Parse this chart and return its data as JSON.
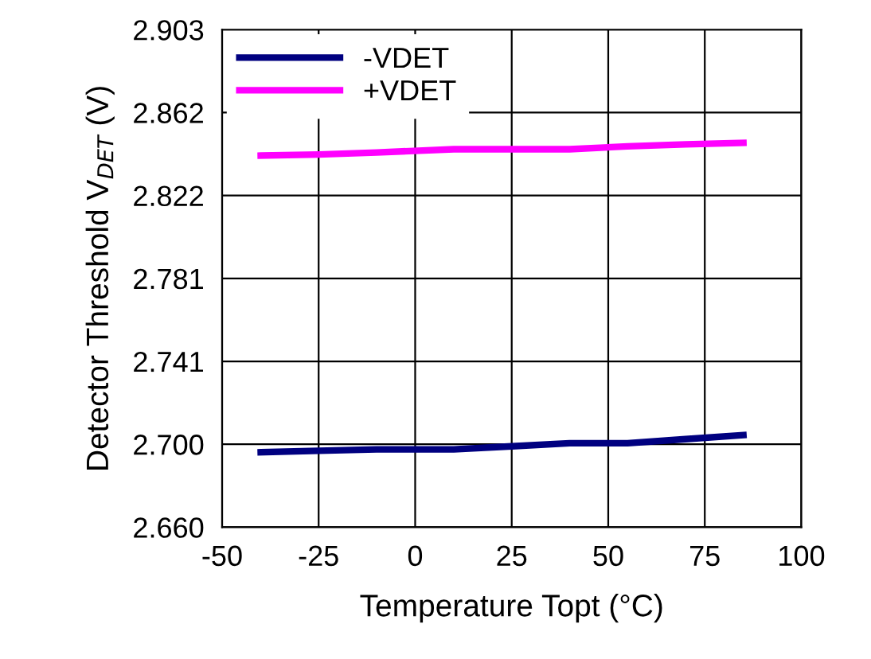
{
  "chart_data": {
    "type": "line",
    "xlabel": "Temperature Topt (°C)",
    "ylabel": "Detector Threshold V$_{DET}$ (V)",
    "xlim": [
      -50,
      100
    ],
    "xticks": [
      -50,
      -25,
      0,
      25,
      50,
      75,
      100
    ],
    "ylim": [
      2.66,
      2.903
    ],
    "yticks": [
      {
        "value": 2.66,
        "label": "2.660"
      },
      {
        "value": 2.7005,
        "label": "2.700"
      },
      {
        "value": 2.741,
        "label": "2.741"
      },
      {
        "value": 2.7815,
        "label": "2.781"
      },
      {
        "value": 2.822,
        "label": "2.822"
      },
      {
        "value": 2.8625,
        "label": "2.862"
      },
      {
        "value": 2.903,
        "label": "2.903"
      }
    ],
    "grid": true,
    "legend": "top left",
    "marker": "none",
    "line_style": "solid",
    "series": [
      {
        "name": "-VDET",
        "color": "#000080",
        "x": [
          -40,
          -25,
          -10,
          10,
          25,
          40,
          55,
          70,
          85
        ],
        "values": [
          2.6966,
          2.6973,
          2.698,
          2.698,
          2.6995,
          2.701,
          2.701,
          2.703,
          2.705
        ]
      },
      {
        "name": "+VDET",
        "color": "#ff00ff",
        "x": [
          -40,
          -25,
          -10,
          10,
          25,
          40,
          55,
          70,
          85
        ],
        "values": [
          2.8415,
          2.842,
          2.843,
          2.8446,
          2.8446,
          2.8446,
          2.846,
          2.847,
          2.8477
        ]
      }
    ]
  }
}
